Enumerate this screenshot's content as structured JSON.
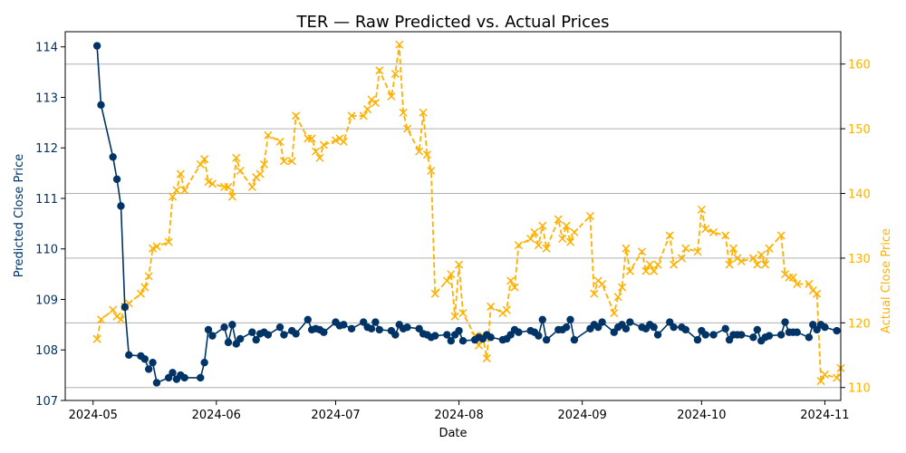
{
  "chart_data": {
    "type": "line",
    "title": "TER — Raw Predicted vs. Actual Prices",
    "xlabel": "Date",
    "ylabel_left": "Predicted Close Price",
    "ylabel_right": "Actual Close Price",
    "xlim": [
      "2024-04-24",
      "2024-11-05"
    ],
    "ylim_left": [
      107,
      114.3
    ],
    "ylim_right": [
      108,
      165
    ],
    "x_ticks": [
      "2024-05",
      "2024-06",
      "2024-07",
      "2024-08",
      "2024-09",
      "2024-10",
      "2024-11"
    ],
    "y_ticks_left": [
      107,
      108,
      109,
      110,
      111,
      112,
      113,
      114
    ],
    "y_ticks_right": [
      110,
      120,
      130,
      140,
      150,
      160
    ],
    "grid": "horizontal lines at right-axis ticks",
    "colors": {
      "predicted": "#003366",
      "actual": "#FFB000",
      "grid": "#b0b0b0"
    },
    "series": [
      {
        "style": "solid line with circle markers",
        "axis": "left",
        "data": [
          [
            "2024-05-02",
            114.02
          ],
          [
            "2024-05-03",
            112.85
          ],
          [
            "2024-05-06",
            111.82
          ],
          [
            "2024-05-07",
            111.38
          ],
          [
            "2024-05-08",
            110.85
          ],
          [
            "2024-05-09",
            108.85
          ],
          [
            "2024-05-10",
            107.9
          ],
          [
            "2024-05-13",
            107.88
          ],
          [
            "2024-05-14",
            107.82
          ],
          [
            "2024-05-15",
            107.62
          ],
          [
            "2024-05-16",
            107.75
          ],
          [
            "2024-05-17",
            107.35
          ],
          [
            "2024-05-20",
            107.45
          ],
          [
            "2024-05-21",
            107.55
          ],
          [
            "2024-05-22",
            107.42
          ],
          [
            "2024-05-23",
            107.5
          ],
          [
            "2024-05-24",
            107.45
          ],
          [
            "2024-05-28",
            107.45
          ],
          [
            "2024-05-29",
            107.75
          ],
          [
            "2024-05-30",
            108.4
          ],
          [
            "2024-05-31",
            108.28
          ],
          [
            "2024-06-03",
            108.45
          ],
          [
            "2024-06-04",
            108.15
          ],
          [
            "2024-06-05",
            108.5
          ],
          [
            "2024-06-06",
            108.12
          ],
          [
            "2024-06-07",
            108.22
          ],
          [
            "2024-06-10",
            108.35
          ],
          [
            "2024-06-11",
            108.2
          ],
          [
            "2024-06-12",
            108.32
          ],
          [
            "2024-06-13",
            108.35
          ],
          [
            "2024-06-14",
            108.3
          ],
          [
            "2024-06-17",
            108.45
          ],
          [
            "2024-06-18",
            108.3
          ],
          [
            "2024-06-20",
            108.38
          ],
          [
            "2024-06-21",
            108.32
          ],
          [
            "2024-06-24",
            108.6
          ],
          [
            "2024-06-25",
            108.4
          ],
          [
            "2024-06-26",
            108.42
          ],
          [
            "2024-06-27",
            108.4
          ],
          [
            "2024-06-28",
            108.35
          ],
          [
            "2024-07-01",
            108.55
          ],
          [
            "2024-07-02",
            108.48
          ],
          [
            "2024-07-03",
            108.5
          ],
          [
            "2024-07-05",
            108.42
          ],
          [
            "2024-07-08",
            108.55
          ],
          [
            "2024-07-09",
            108.45
          ],
          [
            "2024-07-10",
            108.42
          ],
          [
            "2024-07-11",
            108.55
          ],
          [
            "2024-07-12",
            108.4
          ],
          [
            "2024-07-15",
            108.38
          ],
          [
            "2024-07-16",
            108.3
          ],
          [
            "2024-07-17",
            108.5
          ],
          [
            "2024-07-18",
            108.42
          ],
          [
            "2024-07-19",
            108.45
          ],
          [
            "2024-07-22",
            108.42
          ],
          [
            "2024-07-23",
            108.32
          ],
          [
            "2024-07-24",
            108.3
          ],
          [
            "2024-07-25",
            108.25
          ],
          [
            "2024-07-26",
            108.28
          ],
          [
            "2024-07-29",
            108.3
          ],
          [
            "2024-07-30",
            108.18
          ],
          [
            "2024-07-31",
            108.3
          ],
          [
            "2024-08-01",
            108.38
          ],
          [
            "2024-08-02",
            108.18
          ],
          [
            "2024-08-05",
            108.2
          ],
          [
            "2024-08-06",
            108.25
          ],
          [
            "2024-08-07",
            108.22
          ],
          [
            "2024-08-08",
            108.3
          ],
          [
            "2024-08-09",
            108.25
          ],
          [
            "2024-08-12",
            108.2
          ],
          [
            "2024-08-13",
            108.22
          ],
          [
            "2024-08-14",
            108.3
          ],
          [
            "2024-08-15",
            108.4
          ],
          [
            "2024-08-16",
            108.35
          ],
          [
            "2024-08-19",
            108.38
          ],
          [
            "2024-08-20",
            108.35
          ],
          [
            "2024-08-21",
            108.28
          ],
          [
            "2024-08-22",
            108.6
          ],
          [
            "2024-08-23",
            108.2
          ],
          [
            "2024-08-26",
            108.4
          ],
          [
            "2024-08-27",
            108.4
          ],
          [
            "2024-08-28",
            108.45
          ],
          [
            "2024-08-29",
            108.6
          ],
          [
            "2024-08-30",
            108.2
          ],
          [
            "2024-09-03",
            108.42
          ],
          [
            "2024-09-04",
            108.5
          ],
          [
            "2024-09-05",
            108.45
          ],
          [
            "2024-09-06",
            108.55
          ],
          [
            "2024-09-09",
            108.35
          ],
          [
            "2024-09-10",
            108.45
          ],
          [
            "2024-09-11",
            108.5
          ],
          [
            "2024-09-12",
            108.42
          ],
          [
            "2024-09-13",
            108.55
          ],
          [
            "2024-09-16",
            108.45
          ],
          [
            "2024-09-17",
            108.42
          ],
          [
            "2024-09-18",
            108.5
          ],
          [
            "2024-09-19",
            108.45
          ],
          [
            "2024-09-20",
            108.3
          ],
          [
            "2024-09-23",
            108.55
          ],
          [
            "2024-09-24",
            108.45
          ],
          [
            "2024-09-26",
            108.45
          ],
          [
            "2024-09-27",
            108.4
          ],
          [
            "2024-09-30",
            108.2
          ],
          [
            "2024-10-01",
            108.38
          ],
          [
            "2024-10-02",
            108.3
          ],
          [
            "2024-10-04",
            108.3
          ],
          [
            "2024-10-07",
            108.42
          ],
          [
            "2024-10-08",
            108.2
          ],
          [
            "2024-10-09",
            108.3
          ],
          [
            "2024-10-10",
            108.3
          ],
          [
            "2024-10-11",
            108.3
          ],
          [
            "2024-10-14",
            108.25
          ],
          [
            "2024-10-15",
            108.4
          ],
          [
            "2024-10-16",
            108.18
          ],
          [
            "2024-10-17",
            108.25
          ],
          [
            "2024-10-18",
            108.28
          ],
          [
            "2024-10-21",
            108.3
          ],
          [
            "2024-10-22",
            108.55
          ],
          [
            "2024-10-23",
            108.35
          ],
          [
            "2024-10-24",
            108.35
          ],
          [
            "2024-10-25",
            108.35
          ],
          [
            "2024-10-28",
            108.25
          ],
          [
            "2024-10-29",
            108.5
          ],
          [
            "2024-10-30",
            108.4
          ],
          [
            "2024-10-31",
            108.5
          ],
          [
            "2024-11-01",
            108.45
          ],
          [
            "2024-11-04",
            108.38
          ]
        ]
      },
      {
        "style": "dashed line with x markers",
        "axis": "right",
        "data": [
          [
            "2024-05-02",
            117.5
          ],
          [
            "2024-05-03",
            120.5
          ],
          [
            "2024-05-06",
            122
          ],
          [
            "2024-05-07",
            121
          ],
          [
            "2024-05-08",
            120.5
          ],
          [
            "2024-05-09",
            122.5
          ],
          [
            "2024-05-10",
            123
          ],
          [
            "2024-05-13",
            124.5
          ],
          [
            "2024-05-14",
            125.5
          ],
          [
            "2024-05-15",
            127.2
          ],
          [
            "2024-05-16",
            131.5
          ],
          [
            "2024-05-17",
            131.8
          ],
          [
            "2024-05-20",
            132.5
          ],
          [
            "2024-05-21",
            139.5
          ],
          [
            "2024-05-22",
            140.5
          ],
          [
            "2024-05-23",
            143
          ],
          [
            "2024-05-24",
            140.5
          ],
          [
            "2024-05-28",
            144.5
          ],
          [
            "2024-05-29",
            145.3
          ],
          [
            "2024-05-30",
            141.8
          ],
          [
            "2024-05-31",
            141.5
          ],
          [
            "2024-06-03",
            141
          ],
          [
            "2024-06-04",
            141
          ],
          [
            "2024-06-05",
            139.5
          ],
          [
            "2024-06-06",
            145.5
          ],
          [
            "2024-06-07",
            143.5
          ],
          [
            "2024-06-10",
            141
          ],
          [
            "2024-06-11",
            142.5
          ],
          [
            "2024-06-12",
            143
          ],
          [
            "2024-06-13",
            144.5
          ],
          [
            "2024-06-14",
            149
          ],
          [
            "2024-06-17",
            148
          ],
          [
            "2024-06-18",
            145
          ],
          [
            "2024-06-20",
            145
          ],
          [
            "2024-06-21",
            152
          ],
          [
            "2024-06-24",
            148.5
          ],
          [
            "2024-06-25",
            148.5
          ],
          [
            "2024-06-26",
            146.5
          ],
          [
            "2024-06-27",
            145.5
          ],
          [
            "2024-06-28",
            147.5
          ],
          [
            "2024-07-01",
            148.2
          ],
          [
            "2024-07-02",
            148.5
          ],
          [
            "2024-07-03",
            148
          ],
          [
            "2024-07-05",
            152
          ],
          [
            "2024-07-08",
            152
          ],
          [
            "2024-07-09",
            153
          ],
          [
            "2024-07-10",
            154.5
          ],
          [
            "2024-07-11",
            154
          ],
          [
            "2024-07-12",
            159
          ],
          [
            "2024-07-15",
            155
          ],
          [
            "2024-07-16",
            158.5
          ],
          [
            "2024-07-17",
            163
          ],
          [
            "2024-07-18",
            152.5
          ],
          [
            "2024-07-19",
            150
          ],
          [
            "2024-07-22",
            146.5
          ],
          [
            "2024-07-23",
            152.5
          ],
          [
            "2024-07-24",
            146
          ],
          [
            "2024-07-25",
            143.5
          ],
          [
            "2024-07-26",
            124.5
          ],
          [
            "2024-07-29",
            126.5
          ],
          [
            "2024-07-30",
            127.5
          ],
          [
            "2024-07-31",
            121
          ],
          [
            "2024-08-01",
            129
          ],
          [
            "2024-08-02",
            121.5
          ],
          [
            "2024-08-05",
            118
          ],
          [
            "2024-08-06",
            116.5
          ],
          [
            "2024-08-07",
            118
          ],
          [
            "2024-08-08",
            114.5
          ],
          [
            "2024-08-09",
            122.5
          ],
          [
            "2024-08-12",
            121.5
          ],
          [
            "2024-08-13",
            122
          ],
          [
            "2024-08-14",
            126.5
          ],
          [
            "2024-08-15",
            125.5
          ],
          [
            "2024-08-16",
            132
          ],
          [
            "2024-08-19",
            133
          ],
          [
            "2024-08-20",
            134
          ],
          [
            "2024-08-21",
            132
          ],
          [
            "2024-08-22",
            135
          ],
          [
            "2024-08-23",
            131.5
          ],
          [
            "2024-08-26",
            136
          ],
          [
            "2024-08-27",
            133
          ],
          [
            "2024-08-28",
            135
          ],
          [
            "2024-08-29",
            132.5
          ],
          [
            "2024-08-30",
            134
          ],
          [
            "2024-09-03",
            136.5
          ],
          [
            "2024-09-04",
            124.5
          ],
          [
            "2024-09-05",
            126.5
          ],
          [
            "2024-09-06",
            126
          ],
          [
            "2024-09-09",
            121.5
          ],
          [
            "2024-09-10",
            124
          ],
          [
            "2024-09-11",
            125.5
          ],
          [
            "2024-09-12",
            131.5
          ],
          [
            "2024-09-13",
            128
          ],
          [
            "2024-09-16",
            131
          ],
          [
            "2024-09-17",
            128
          ],
          [
            "2024-09-18",
            129
          ],
          [
            "2024-09-19",
            128
          ],
          [
            "2024-09-20",
            129
          ],
          [
            "2024-09-23",
            133.5
          ],
          [
            "2024-09-24",
            129
          ],
          [
            "2024-09-26",
            130
          ],
          [
            "2024-09-27",
            131.5
          ],
          [
            "2024-09-30",
            131
          ],
          [
            "2024-10-01",
            137.5
          ],
          [
            "2024-10-02",
            134.5
          ],
          [
            "2024-10-04",
            134
          ],
          [
            "2024-10-07",
            133.5
          ],
          [
            "2024-10-08",
            129
          ],
          [
            "2024-10-09",
            131.5
          ],
          [
            "2024-10-10",
            130
          ],
          [
            "2024-10-11",
            129.5
          ],
          [
            "2024-10-14",
            130
          ],
          [
            "2024-10-15",
            129
          ],
          [
            "2024-10-16",
            130.5
          ],
          [
            "2024-10-17",
            129
          ],
          [
            "2024-10-18",
            131.5
          ],
          [
            "2024-10-21",
            133.5
          ],
          [
            "2024-10-22",
            127.5
          ],
          [
            "2024-10-23",
            127
          ],
          [
            "2024-10-24",
            127
          ],
          [
            "2024-10-25",
            126
          ],
          [
            "2024-10-28",
            126
          ],
          [
            "2024-10-29",
            125
          ],
          [
            "2024-10-30",
            124.5
          ],
          [
            "2024-10-31",
            111
          ],
          [
            "2024-11-01",
            112
          ],
          [
            "2024-11-04",
            111.5
          ],
          [
            "2024-11-05",
            113
          ]
        ]
      }
    ]
  }
}
